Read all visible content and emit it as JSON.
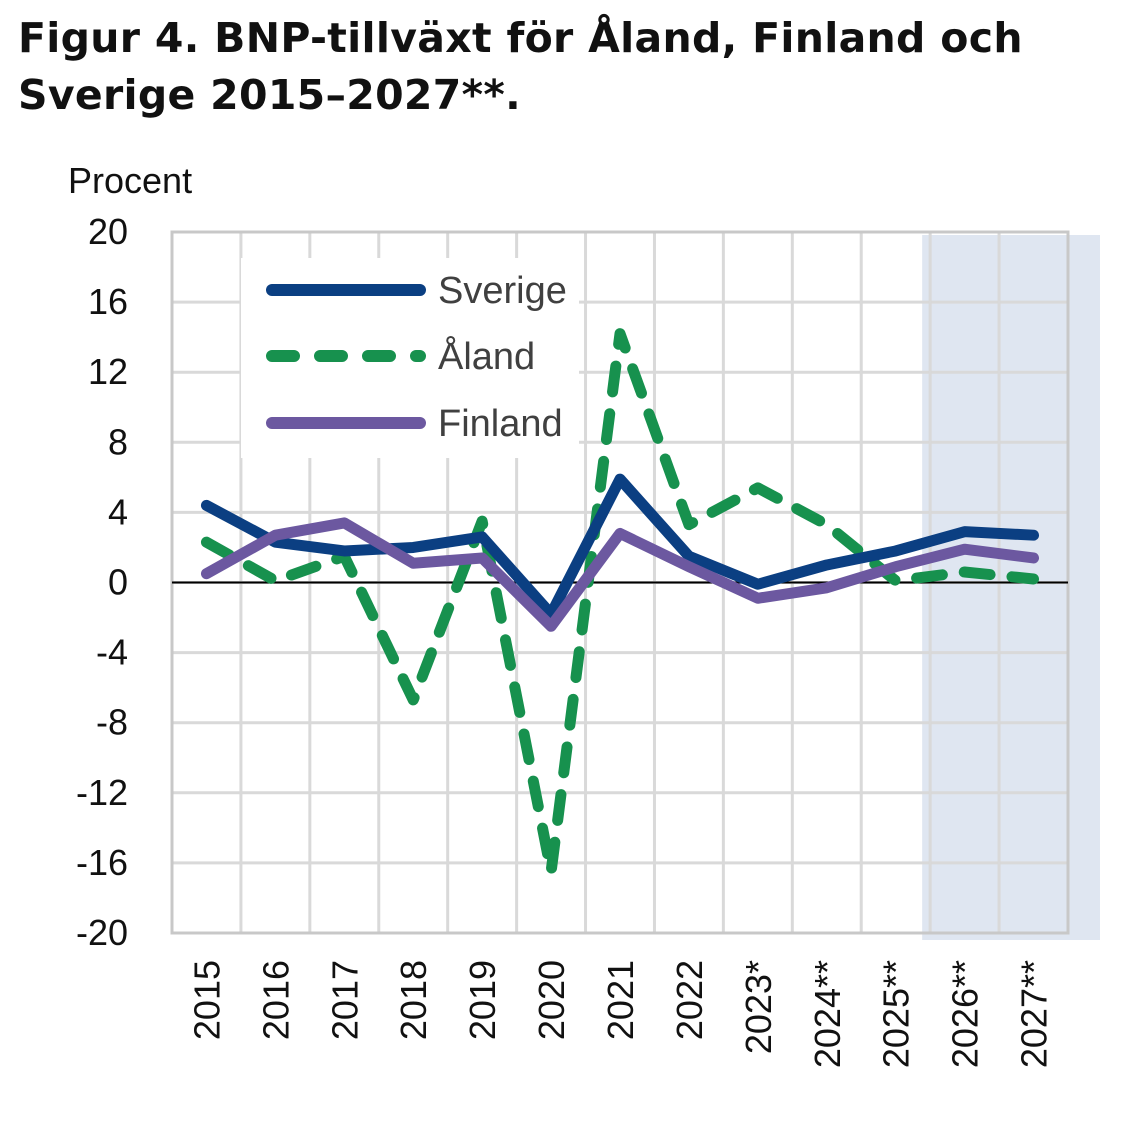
{
  "title": "Figur 4. BNP-tillväxt för Åland, Finland och Sverige 2015–2027**.",
  "chart_data": {
    "type": "line",
    "title": "Figur 4. BNP-tillväxt för Åland, Finland och Sverige 2015–2027**.",
    "ylabel": "Procent",
    "xlabel": "",
    "categories": [
      "2015",
      "2016",
      "2017",
      "2018",
      "2019",
      "2020",
      "2021",
      "2022",
      "2023*",
      "2024**",
      "2025**",
      "2026**",
      "2027**"
    ],
    "ylim": [
      -20,
      20
    ],
    "yticks": [
      20,
      16,
      12,
      8,
      4,
      0,
      -4,
      -8,
      -12,
      -16,
      -20
    ],
    "grid": true,
    "legend_position": "top-left",
    "forecast_shading": {
      "categories": [
        "2026**",
        "2027**"
      ],
      "color": "#dfe6f1"
    },
    "series": [
      {
        "name": "Sverige",
        "color": "#0b3f82",
        "style": "solid",
        "values": [
          4.4,
          2.3,
          1.8,
          2.0,
          2.6,
          -1.8,
          5.9,
          1.5,
          -0.1,
          1.0,
          1.8,
          2.9,
          2.7
        ]
      },
      {
        "name": "Åland",
        "color": "#17914e",
        "style": "dashed",
        "values": [
          2.3,
          0.1,
          1.5,
          -6.7,
          3.5,
          -16.5,
          14.2,
          3.3,
          5.4,
          3.3,
          0.1,
          0.6,
          0.2
        ]
      },
      {
        "name": "Finland",
        "color": "#6c58a0",
        "style": "solid",
        "values": [
          0.5,
          2.7,
          3.4,
          1.1,
          1.4,
          -2.5,
          2.8,
          0.9,
          -0.9,
          -0.3,
          0.9,
          1.9,
          1.4
        ]
      }
    ]
  }
}
